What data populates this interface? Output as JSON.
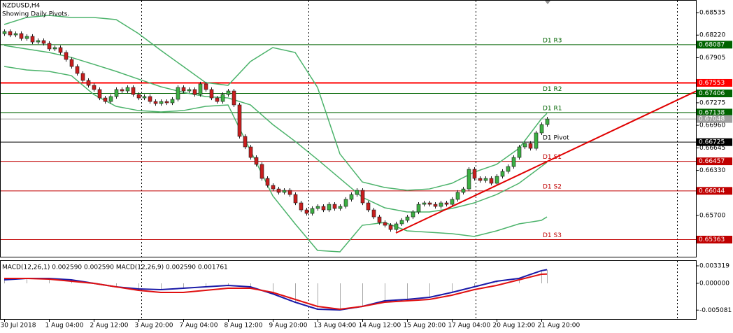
{
  "chart_data": [
    {
      "type": "candlestick",
      "title": "NZDUSD,H4",
      "subtitle": "Showing Daily Pivots.",
      "categories": [
        "30 Jul 2018",
        null,
        null,
        null,
        null,
        null,
        null,
        null,
        "1 Aug 04:00",
        null,
        null,
        null,
        null,
        null,
        null,
        null,
        "2 Aug 12:00",
        null,
        null,
        null,
        null,
        null,
        null,
        null,
        "3 Aug 20:00",
        null,
        null,
        null,
        null,
        null,
        null,
        null,
        "7 Aug 04:00",
        null,
        null,
        null,
        null,
        null,
        null,
        null,
        "8 Aug 12:00",
        null,
        null,
        null,
        null,
        null,
        null,
        null,
        "9 Aug 20:00",
        null,
        null,
        null,
        null,
        null,
        null,
        null,
        "13 Aug 04:00",
        null,
        null,
        null,
        null,
        null,
        null,
        null,
        "14 Aug 12:00",
        null,
        null,
        null,
        null,
        null,
        null,
        null,
        "15 Aug 20:00",
        null,
        null,
        null,
        null,
        null,
        null,
        null,
        "17 Aug 04:00",
        null,
        null,
        null,
        null,
        null,
        null,
        null,
        "20 Aug 12:00",
        null,
        null,
        null,
        null,
        null,
        null,
        null,
        "21 Aug 20:00",
        null
      ],
      "candles": [
        [
          0.6824,
          0.68301,
          0.6821,
          0.68271
        ],
        [
          0.68271,
          0.68301,
          0.68192,
          0.68222
        ],
        [
          0.68222,
          0.68272,
          0.68192,
          0.68242
        ],
        [
          0.68242,
          0.68272,
          0.68143,
          0.68173
        ],
        [
          0.68173,
          0.68233,
          0.68143,
          0.68203
        ],
        [
          0.68203,
          0.68233,
          0.68094,
          0.68124
        ],
        [
          0.68124,
          0.68174,
          0.68094,
          0.68144
        ],
        [
          0.68144,
          0.68174,
          0.68075,
          0.68105
        ],
        [
          0.68105,
          0.68135,
          0.67997,
          0.68027
        ],
        [
          0.68027,
          0.68076,
          0.67997,
          0.68046
        ],
        [
          0.68046,
          0.68076,
          0.67948,
          0.67978
        ],
        [
          0.67978,
          0.68008,
          0.6785,
          0.6788
        ],
        [
          0.6788,
          0.6791,
          0.67752,
          0.67782
        ],
        [
          0.67782,
          0.67812,
          0.67655,
          0.67685
        ],
        [
          0.67685,
          0.67715,
          0.67557,
          0.67587
        ],
        [
          0.67587,
          0.67617,
          0.67488,
          0.67518
        ],
        [
          0.67518,
          0.67548,
          0.6743,
          0.6746
        ],
        [
          0.6746,
          0.6749,
          0.67312,
          0.67342
        ],
        [
          0.67342,
          0.67372,
          0.67263,
          0.67293
        ],
        [
          0.67293,
          0.67392,
          0.67263,
          0.67362
        ],
        [
          0.67362,
          0.6749,
          0.67332,
          0.6746
        ],
        [
          0.6746,
          0.6749,
          0.6741,
          0.6744
        ],
        [
          0.6744,
          0.67519,
          0.6741,
          0.67489
        ],
        [
          0.67489,
          0.67519,
          0.67361,
          0.67391
        ],
        [
          0.67391,
          0.67421,
          0.67312,
          0.67342
        ],
        [
          0.67342,
          0.67392,
          0.67312,
          0.67362
        ],
        [
          0.67362,
          0.67392,
          0.67263,
          0.67293
        ],
        [
          0.67293,
          0.67323,
          0.67234,
          0.67264
        ],
        [
          0.67264,
          0.67323,
          0.67234,
          0.67293
        ],
        [
          0.67293,
          0.67323,
          0.67244,
          0.67274
        ],
        [
          0.67274,
          0.67353,
          0.67244,
          0.67323
        ],
        [
          0.67323,
          0.67519,
          0.67293,
          0.67489
        ],
        [
          0.67489,
          0.67519,
          0.6741,
          0.6744
        ],
        [
          0.6744,
          0.6749,
          0.6741,
          0.6746
        ],
        [
          0.6746,
          0.6749,
          0.67361,
          0.67391
        ],
        [
          0.67391,
          0.67568,
          0.67361,
          0.67538
        ],
        [
          0.67538,
          0.67568,
          0.6743,
          0.6746
        ],
        [
          0.6746,
          0.6749,
          0.67312,
          0.67342
        ],
        [
          0.67342,
          0.67372,
          0.67263,
          0.67293
        ],
        [
          0.67293,
          0.67421,
          0.67263,
          0.67391
        ],
        [
          0.67391,
          0.6747,
          0.67361,
          0.6744
        ],
        [
          0.6744,
          0.6747,
          0.67215,
          0.67245
        ],
        [
          0.67245,
          0.67275,
          0.66775,
          0.66805
        ],
        [
          0.66805,
          0.66835,
          0.66628,
          0.66658
        ],
        [
          0.66658,
          0.66688,
          0.66481,
          0.66511
        ],
        [
          0.66511,
          0.66541,
          0.66384,
          0.66414
        ],
        [
          0.66414,
          0.66444,
          0.66188,
          0.66218
        ],
        [
          0.66218,
          0.66248,
          0.6609,
          0.6612
        ],
        [
          0.6612,
          0.6615,
          0.66041,
          0.66071
        ],
        [
          0.66071,
          0.66101,
          0.65993,
          0.66023
        ],
        [
          0.66023,
          0.66082,
          0.65993,
          0.66052
        ],
        [
          0.66052,
          0.66082,
          0.65963,
          0.65993
        ],
        [
          0.65993,
          0.66023,
          0.65846,
          0.65876
        ],
        [
          0.65876,
          0.65906,
          0.65748,
          0.65778
        ],
        [
          0.65778,
          0.65808,
          0.65699,
          0.65729
        ],
        [
          0.65729,
          0.65828,
          0.65699,
          0.65798
        ],
        [
          0.65798,
          0.65857,
          0.65768,
          0.65827
        ],
        [
          0.65827,
          0.65857,
          0.65748,
          0.65778
        ],
        [
          0.65778,
          0.65886,
          0.65748,
          0.65856
        ],
        [
          0.65856,
          0.65886,
          0.65768,
          0.65798
        ],
        [
          0.65798,
          0.65857,
          0.65768,
          0.65827
        ],
        [
          0.65827,
          0.65955,
          0.65797,
          0.65925
        ],
        [
          0.65925,
          0.66023,
          0.65895,
          0.65993
        ],
        [
          0.65993,
          0.66082,
          0.65963,
          0.66052
        ],
        [
          0.66052,
          0.66082,
          0.65846,
          0.65876
        ],
        [
          0.65876,
          0.65906,
          0.65748,
          0.65778
        ],
        [
          0.65778,
          0.65808,
          0.6565,
          0.6568
        ],
        [
          0.6568,
          0.6571,
          0.65572,
          0.65602
        ],
        [
          0.65602,
          0.65632,
          0.65533,
          0.65563
        ],
        [
          0.65563,
          0.65593,
          0.65474,
          0.65504
        ],
        [
          0.65504,
          0.65613,
          0.65474,
          0.65583
        ],
        [
          0.65583,
          0.65662,
          0.65553,
          0.65632
        ],
        [
          0.65632,
          0.6571,
          0.65602,
          0.6568
        ],
        [
          0.6568,
          0.65779,
          0.6565,
          0.65749
        ],
        [
          0.65749,
          0.65886,
          0.65719,
          0.65856
        ],
        [
          0.65856,
          0.65906,
          0.65826,
          0.65876
        ],
        [
          0.65876,
          0.65906,
          0.65826,
          0.65856
        ],
        [
          0.65856,
          0.65886,
          0.65797,
          0.65827
        ],
        [
          0.65827,
          0.65906,
          0.65797,
          0.65876
        ],
        [
          0.65876,
          0.65906,
          0.65826,
          0.65856
        ],
        [
          0.65856,
          0.65955,
          0.65826,
          0.65925
        ],
        [
          0.65925,
          0.66053,
          0.65895,
          0.66023
        ],
        [
          0.66023,
          0.66101,
          0.65993,
          0.66071
        ],
        [
          0.66071,
          0.66375,
          0.66041,
          0.66345
        ],
        [
          0.66345,
          0.66375,
          0.66188,
          0.66218
        ],
        [
          0.66218,
          0.66248,
          0.66159,
          0.66189
        ],
        [
          0.66189,
          0.66248,
          0.66159,
          0.66218
        ],
        [
          0.66218,
          0.66248,
          0.6612,
          0.6615
        ],
        [
          0.6615,
          0.66277,
          0.6612,
          0.66247
        ],
        [
          0.66247,
          0.66346,
          0.66217,
          0.66316
        ],
        [
          0.66316,
          0.66414,
          0.66286,
          0.66384
        ],
        [
          0.66384,
          0.66541,
          0.66354,
          0.66511
        ],
        [
          0.66511,
          0.66688,
          0.66481,
          0.66658
        ],
        [
          0.66658,
          0.66737,
          0.66628,
          0.66707
        ],
        [
          0.66707,
          0.66737,
          0.66608,
          0.66638
        ],
        [
          0.66638,
          0.66884,
          0.66608,
          0.66854
        ],
        [
          0.66854,
          0.67001,
          0.66824,
          0.66971
        ],
        [
          0.66971,
          0.67078,
          0.66941,
          0.67048
        ]
      ],
      "up_color": "#3cb043",
      "down_color": "#c81e1e",
      "wick_color": "#1a1a1a",
      "ylim": [
        0.65143,
        0.68711
      ],
      "yticks": [
        0.68535,
        {
          "value": 0.6822,
          "label": "0.68220"
        },
        0.67905,
        0.67275,
        {
          "value": 0.6696,
          "label": "0.66960"
        },
        0.66645,
        {
          "value": 0.6633,
          "label": "0.66330"
        },
        {
          "value": 0.657,
          "label": "0.65700"
        }
      ],
      "bands": {
        "color": "#4cb36b",
        "x": [
          0,
          4,
          8,
          12,
          16,
          20,
          24,
          28,
          32,
          36,
          40,
          44,
          48,
          52,
          56,
          60,
          64,
          68,
          72,
          76,
          80,
          84,
          88,
          92,
          96,
          97
        ],
        "upper": [
          0.68369,
          0.68467,
          0.68496,
          0.68467,
          0.68467,
          0.68437,
          0.68242,
          0.68007,
          0.67782,
          0.67557,
          0.67518,
          0.67851,
          0.68046,
          0.67978,
          0.67489,
          0.6656,
          0.66169,
          0.66091,
          0.66052,
          0.66071,
          0.6615,
          0.66306,
          0.66414,
          0.66638,
          0.67049,
          0.67127
        ],
        "middle": [
          0.68076,
          0.68027,
          0.67978,
          0.67909,
          0.67812,
          0.67714,
          0.67606,
          0.67499,
          0.67421,
          0.67362,
          0.67342,
          0.67245,
          0.66971,
          0.66736,
          0.66482,
          0.66218,
          0.65954,
          0.65808,
          0.65749,
          0.65749,
          0.65798,
          0.65876,
          0.65993,
          0.6615,
          0.66384,
          0.66443
        ],
        "lower": [
          0.67782,
          0.67733,
          0.67714,
          0.67655,
          0.67391,
          0.67225,
          0.67166,
          0.67147,
          0.67166,
          0.67225,
          0.67245,
          0.66609,
          0.65974,
          0.65583,
          0.65211,
          0.65192,
          0.65563,
          0.65602,
          0.65485,
          0.65465,
          0.65446,
          0.65407,
          0.65485,
          0.65583,
          0.65632,
          0.6568
        ]
      },
      "levels": [
        {
          "label": "D1 R3",
          "value": 0.68087,
          "color": "#006400"
        },
        {
          "label": "D1 R2",
          "value": 0.67406,
          "color": "#006400"
        },
        {
          "label": "D1 R1",
          "value": 0.67138,
          "color": "#006400"
        },
        {
          "label": "D1 Pivot",
          "value": 0.66725,
          "color": "#000000"
        },
        {
          "label": "D1 S1",
          "value": 0.66457,
          "color": "#c00000"
        },
        {
          "label": "D1 S2",
          "value": 0.66044,
          "color": "#c00000"
        },
        {
          "label": "D1 S3",
          "value": 0.65363,
          "color": "#c00000"
        }
      ],
      "hline": {
        "value": 0.67553,
        "color": "#ff0000"
      },
      "bid_color": "#a0a0a0",
      "trendline": {
        "x": [
          70,
          97
        ],
        "values": [
          0.65456,
          0.66453
        ],
        "color": "#e00000"
      }
    },
    {
      "type": "line",
      "title": "MACD(12,26,1) 0.002590 0.002590 MACD(12,26,9) 0.002590 0.001761",
      "ylim": [
        -0.006771,
        0.004116
      ],
      "yticks": [
        0.003319,
        {
          "value": 0,
          "label": "0.000000"
        },
        -0.005081
      ],
      "histogram_color": "#a8a8a8",
      "x": [
        0,
        4,
        8,
        12,
        16,
        20,
        24,
        28,
        32,
        36,
        40,
        44,
        48,
        52,
        56,
        60,
        64,
        68,
        72,
        76,
        80,
        84,
        88,
        92,
        96,
        97
      ],
      "series": [
        {
          "color": "#1a1aa8",
          "values": [
            0.000664,
            0.00093,
            0.00093,
            0.000664,
            0,
            -0.000664,
            -0.001062,
            -0.001195,
            -0.00093,
            -0.000664,
            -0.000398,
            -0.000664,
            -0.001992,
            -0.003586,
            -0.004914,
            -0.005046,
            -0.004382,
            -0.00332,
            -0.003054,
            -0.002656,
            -0.001726,
            -0.000664,
            0.000398,
            0.00093,
            0.0024,
            0.00259
          ]
        },
        {
          "color": "#e01010",
          "values": [
            0.00093,
            0.00093,
            0.000797,
            0.000398,
            0,
            -0.000664,
            -0.001328,
            -0.001726,
            -0.001726,
            -0.001328,
            -0.00093,
            -0.00093,
            -0.001726,
            -0.003054,
            -0.004382,
            -0.004914,
            -0.004382,
            -0.003586,
            -0.00332,
            -0.003054,
            -0.002258,
            -0.001195,
            -0.000398,
            0.000664,
            0.001726,
            0.001761
          ]
        }
      ]
    }
  ]
}
